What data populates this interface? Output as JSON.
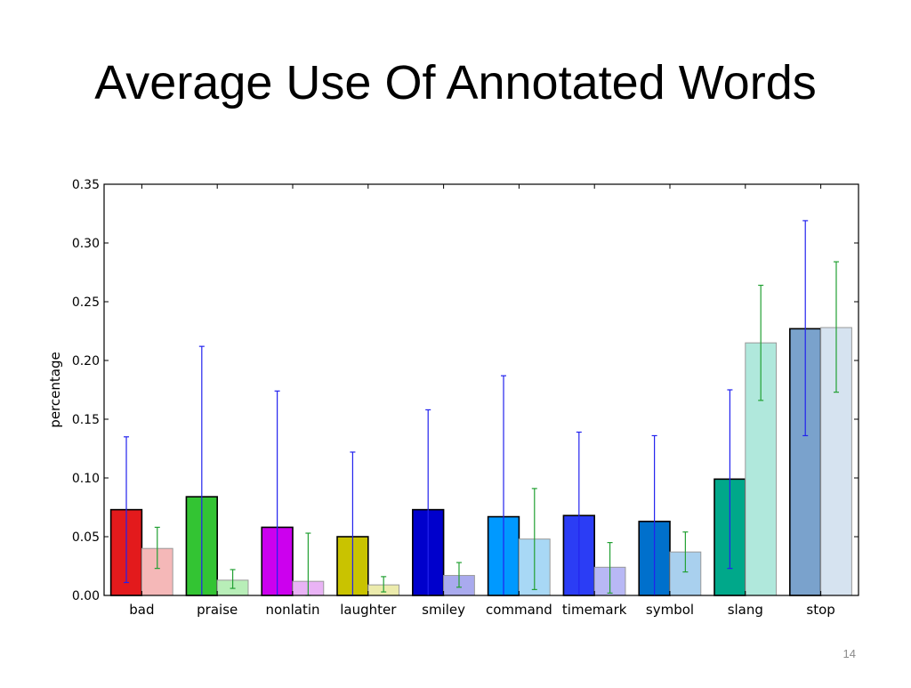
{
  "slide": {
    "title": "Average Use Of Annotated Words",
    "page_number": "14"
  },
  "chart_data": {
    "type": "bar",
    "title": "",
    "xlabel": "",
    "ylabel": "percentage",
    "ylim": [
      0,
      0.35
    ],
    "yticks": [
      "0.00",
      "0.05",
      "0.10",
      "0.15",
      "0.20",
      "0.25",
      "0.30",
      "0.35"
    ],
    "grid": false,
    "categories": [
      "bad",
      "praise",
      "nonlatin",
      "laughter",
      "smiley",
      "command",
      "timemark",
      "symbol",
      "slang",
      "stop"
    ],
    "series": [
      {
        "values": [
          0.073,
          0.084,
          0.058,
          0.05,
          0.073,
          0.067,
          0.068,
          0.063,
          0.099,
          0.227
        ],
        "err_low": [
          0.011,
          0.0,
          0.0,
          0.0,
          0.0,
          0.0,
          0.0,
          0.0,
          0.023,
          0.136
        ],
        "err_high": [
          0.135,
          0.212,
          0.174,
          0.122,
          0.158,
          0.187,
          0.139,
          0.136,
          0.175,
          0.319
        ],
        "colors": [
          "#e31a1c",
          "#33c433",
          "#cc00ee",
          "#c9c300",
          "#0000cc",
          "#0099ff",
          "#2b3df5",
          "#0070cc",
          "#00a88a",
          "#7aa2cc"
        ],
        "error_color": "#2222ee"
      },
      {
        "values": [
          0.04,
          0.013,
          0.012,
          0.009,
          0.017,
          0.048,
          0.024,
          0.037,
          0.215,
          0.228
        ],
        "err_low": [
          0.023,
          0.006,
          0.0,
          0.003,
          0.007,
          0.005,
          0.002,
          0.02,
          0.166,
          0.173
        ],
        "err_high": [
          0.058,
          0.022,
          0.053,
          0.016,
          0.028,
          0.091,
          0.045,
          0.054,
          0.264,
          0.284
        ],
        "colors": [
          "#f5b8b8",
          "#b8eeb8",
          "#e9b3f5",
          "#ecebac",
          "#a9aaee",
          "#a8d8f5",
          "#b8b8f5",
          "#a9d0ee",
          "#b0e8dc",
          "#d6e3f0"
        ],
        "error_color": "#22a033"
      }
    ]
  }
}
